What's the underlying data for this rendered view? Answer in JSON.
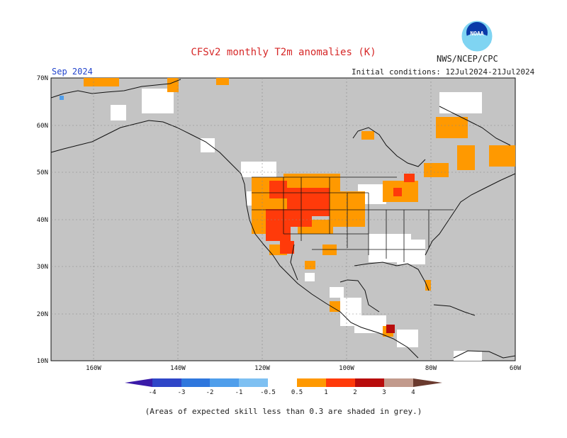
{
  "header": {
    "title": "CFSv2 monthly T2m anomalies (K)",
    "org": "NWS/NCEP/CPC",
    "month": "Sep 2024",
    "init_conditions": "Initial conditions: 12Jul2024-21Jul2024",
    "logo_text": "NOAA"
  },
  "map": {
    "projection": "cylindrical lat-lon",
    "lon_range": [
      -170,
      -60
    ],
    "lat_range": [
      10,
      70
    ],
    "lat_labels": [
      "70N",
      "60N",
      "50N",
      "40N",
      "30N",
      "20N",
      "10N"
    ],
    "lon_labels": [
      "160W",
      "140W",
      "120W",
      "100W",
      "80W",
      "60W"
    ],
    "grid": "dashed",
    "land_color": "#c4c4c4",
    "skill_shading": "grey"
  },
  "colorbar": {
    "labels": [
      "-4",
      "-3",
      "-2",
      "-1",
      "-0.5",
      "0.5",
      "1",
      "2",
      "3",
      "4"
    ],
    "colors": [
      "#3a1aa8",
      "#2f46c8",
      "#2f77dd",
      "#4f9eeb",
      "#7ec0f2",
      "#ffffff",
      "#ff9900",
      "#ff3a0a",
      "#b80c0c",
      "#c29a8c",
      "#6a3a2e"
    ]
  },
  "footnote": "(Areas of expected skill less than 0.3 are shaded in grey.)"
}
